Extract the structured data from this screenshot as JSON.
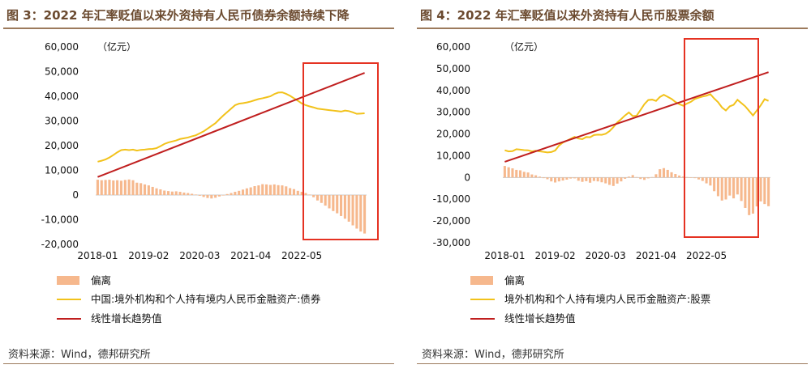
{
  "colors": {
    "bar": "#f6b88d",
    "line": "#f2c21b",
    "trend": "#c01f1f",
    "highlight": "#e53222",
    "title": "#6b4a2f",
    "rule": "#9c7a5c"
  },
  "chart_data": [
    {
      "type": "bar",
      "title": "图 3：2022 年汇率贬值以来外资持有人民币债券余额持续下降",
      "unit_label": "（亿元）",
      "source": "资料来源：Wind，德邦研究所",
      "ylim": [
        -20000,
        60000
      ],
      "yticks": [
        "60,000",
        "50,000",
        "40,000",
        "30,000",
        "20,000",
        "10,000",
        "0",
        "-10,000",
        "-20,000"
      ],
      "xticks": [
        "2018-01",
        "2019-02",
        "2020-03",
        "2021-04",
        "2022-05"
      ],
      "series": [
        {
          "name": "偏离",
          "type": "bar",
          "values": [
            6200,
            6000,
            6100,
            6200,
            5900,
            6000,
            5800,
            6100,
            6300,
            6000,
            5000,
            4800,
            4300,
            3900,
            3300,
            2700,
            2300,
            1800,
            1600,
            1400,
            1500,
            1300,
            1000,
            800,
            500,
            200,
            -300,
            -800,
            -1200,
            -1400,
            -1100,
            -600,
            0,
            400,
            800,
            1300,
            1700,
            2200,
            2700,
            3100,
            3600,
            3900,
            4400,
            4300,
            4100,
            4300,
            4000,
            3900,
            3500,
            2800,
            2400,
            1700,
            1300,
            800,
            200,
            -900,
            -2200,
            -3200,
            -4300,
            -5400,
            -6500,
            -7400,
            -8500,
            -9600,
            -10800,
            -12300,
            -13600,
            -14800,
            -15600
          ]
        },
        {
          "name": "中国:境外机构和个人持有境内人民币金融资产:债券",
          "type": "line",
          "values": [
            13500,
            13900,
            14400,
            15200,
            16200,
            17300,
            18200,
            18400,
            18200,
            18400,
            18000,
            18300,
            18400,
            18600,
            18700,
            19000,
            19800,
            20700,
            21300,
            21700,
            22100,
            22700,
            23000,
            23300,
            23800,
            24200,
            25000,
            25800,
            26900,
            28000,
            29100,
            30700,
            32200,
            33600,
            35000,
            36400,
            37000,
            37200,
            37500,
            37900,
            38400,
            38900,
            39200,
            39600,
            40000,
            40900,
            41500,
            41600,
            41000,
            40200,
            39200,
            38200,
            37100,
            36400,
            35900,
            35500,
            35000,
            34800,
            34600,
            34400,
            34200,
            34000,
            33800,
            34200,
            34000,
            33500,
            32900,
            33000,
            33100
          ]
        },
        {
          "name": "线性增长趋势值",
          "type": "line",
          "start": 7300,
          "end": 49500
        }
      ]
    },
    {
      "type": "bar",
      "title": "图 4：2022 年汇率贬值以来外资持有人民币股票余额",
      "unit_label": "（亿元）",
      "source": "资料来源：Wind，德邦研究所",
      "ylim": [
        -30000,
        60000
      ],
      "yticks": [
        "60,000",
        "50,000",
        "40,000",
        "30,000",
        "20,000",
        "10,000",
        "0",
        "-10,000",
        "-20,000",
        "-30,000"
      ],
      "xticks": [
        "2018-01",
        "2019-02",
        "2020-03",
        "2021-04",
        "2022-05"
      ],
      "series": [
        {
          "name": "偏离",
          "type": "bar",
          "values": [
            5300,
            4700,
            4200,
            3500,
            3300,
            2600,
            2300,
            1400,
            1000,
            400,
            -300,
            -800,
            -1800,
            -2300,
            -1800,
            -1400,
            -1000,
            -500,
            -400,
            -1500,
            -2000,
            -1700,
            -2400,
            -1600,
            -1800,
            -2200,
            -2700,
            -3400,
            -3900,
            -2800,
            -1800,
            -600,
            400,
            1100,
            200,
            -700,
            -1100,
            -400,
            200,
            1500,
            3800,
            4300,
            3500,
            2400,
            1600,
            900,
            400,
            200,
            100,
            -300,
            -900,
            -1600,
            -2700,
            -3700,
            -6300,
            -8600,
            -10600,
            -10100,
            -8300,
            -9600,
            -7800,
            -10800,
            -14000,
            -17300,
            -16600,
            -13300,
            -11000,
            -12200,
            -13200
          ]
        },
        {
          "name": "境外机构和个人持有境内人民币金融资产:股票",
          "type": "line",
          "values": [
            12500,
            12000,
            12100,
            13000,
            12800,
            12600,
            12500,
            12000,
            12300,
            12000,
            11800,
            11500,
            11700,
            12400,
            14700,
            16100,
            16900,
            17800,
            18700,
            17900,
            17600,
            18600,
            18500,
            19500,
            19700,
            19600,
            20100,
            21300,
            23100,
            25300,
            26800,
            28500,
            29900,
            28200,
            28400,
            31000,
            33700,
            35600,
            35800,
            35200,
            37000,
            38000,
            37100,
            36100,
            34700,
            33700,
            33000,
            34000,
            34800,
            36100,
            36700,
            37200,
            37600,
            38300,
            36300,
            34600,
            32200,
            30800,
            32700,
            33400,
            35700,
            34200,
            32700,
            30600,
            28500,
            30800,
            33200,
            36000,
            35200
          ]
        },
        {
          "name": "线性增长趋势值",
          "type": "line",
          "start": 7200,
          "end": 48400
        }
      ]
    }
  ]
}
